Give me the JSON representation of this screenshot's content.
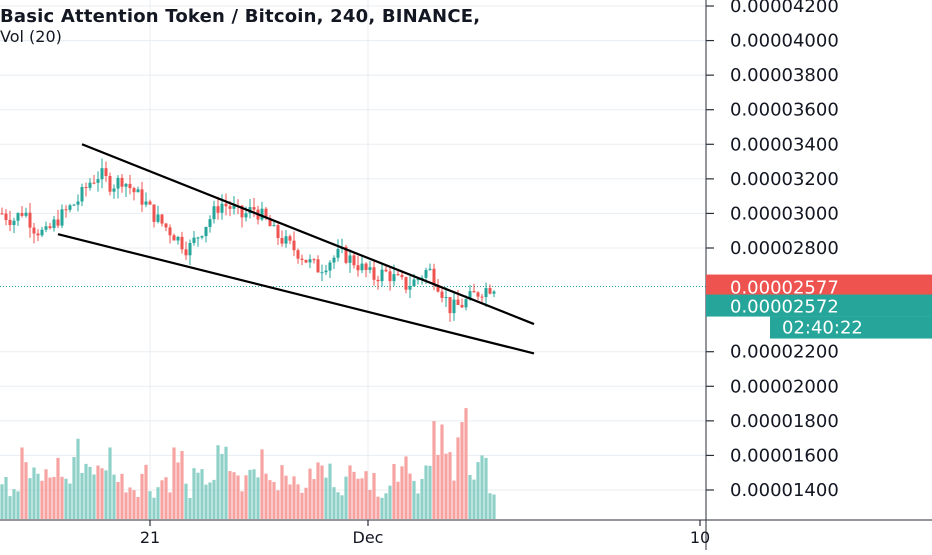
{
  "header": {
    "title": "Basic Attention Token / Bitcoin, 240, BINANCE,",
    "volume_label": "Vol (20)"
  },
  "colors": {
    "up": "#26a69a",
    "down": "#ef5350",
    "vol_up": "#8fd1c9",
    "vol_down": "#f6a3a1",
    "grid": "#e8edf2",
    "axis_text": "#131722",
    "trendline": "#000000",
    "price_line": "#26a69a"
  },
  "chart_data": {
    "type": "candlestick",
    "symbol": "Basic Attention Token / Bitcoin",
    "interval": "240",
    "exchange": "BINANCE",
    "y_axis": {
      "ticks": [
        "0.00004200",
        "0.00004000",
        "0.00003800",
        "0.00003600",
        "0.00003400",
        "0.00003200",
        "0.00003000",
        "0.00002800",
        "0.00002200",
        "0.00002000",
        "0.00001800",
        "0.00001600",
        "0.00001400"
      ],
      "range": [
        1.25e-05,
        4.32e-05
      ]
    },
    "x_axis": {
      "labels": [
        "21",
        "Dec",
        "10"
      ]
    },
    "last_price": {
      "value": 2.577e-05,
      "label": "0.00002577",
      "color": "#ef5350"
    },
    "current_price": {
      "value": 2.572e-05,
      "label": "0.00002572",
      "countdown": "02:40:22",
      "color": "#26a69a"
    },
    "candle_close_series": [
      3e-05,
      2.96e-05,
      3.02e-05,
      2.91e-05,
      2.88e-05,
      2.96e-05,
      3.02e-05,
      3.08e-05,
      3.18e-05,
      3.23e-05,
      3.16e-05,
      3.2e-05,
      3.13e-05,
      3.07e-05,
      2.98e-05,
      2.92e-05,
      2.86e-05,
      2.79e-05,
      2.88e-05,
      2.97e-05,
      3.06e-05,
      3.03e-05,
      2.98e-05,
      3.03e-05,
      2.97e-05,
      2.88e-05,
      2.83e-05,
      2.78e-05,
      2.72e-05,
      2.68e-05,
      2.73e-05,
      2.77e-05,
      2.73e-05,
      2.68e-05,
      2.63e-05,
      2.66e-05,
      2.62e-05,
      2.58e-05,
      2.62e-05,
      2.68e-05,
      2.58e-05,
      2.45e-05,
      2.47e-05,
      2.52e-05,
      2.56e-05,
      2.58e-05
    ],
    "volume_series": [
      45,
      30,
      55,
      38,
      40,
      48,
      35,
      60,
      52,
      42,
      58,
      36,
      32,
      44,
      30,
      38,
      56,
      28,
      36,
      40,
      54,
      48,
      34,
      44,
      60,
      38,
      50,
      30,
      36,
      46,
      42,
      34,
      40,
      58,
      32,
      30,
      48,
      60,
      36,
      44,
      70,
      55,
      104,
      35,
      45,
      30
    ],
    "volume_up_flags": [
      1,
      1,
      0,
      1,
      0,
      0,
      1,
      1,
      1,
      0,
      1,
      0,
      0,
      0,
      1,
      0,
      0,
      1,
      1,
      1,
      1,
      0,
      0,
      1,
      0,
      0,
      0,
      0,
      0,
      0,
      1,
      1,
      0,
      0,
      0,
      1,
      0,
      0,
      1,
      1,
      0,
      0,
      0,
      1,
      1,
      1
    ],
    "trendlines": [
      {
        "name": "upper",
        "from": {
          "bar": 20,
          "value": 3.4e-05
        },
        "to": {
          "bar": 133,
          "value": 2.36e-05
        }
      },
      {
        "name": "lower",
        "from": {
          "bar": 14,
          "value": 2.88e-05
        },
        "to": {
          "bar": 133,
          "value": 2.19e-05
        }
      }
    ]
  }
}
